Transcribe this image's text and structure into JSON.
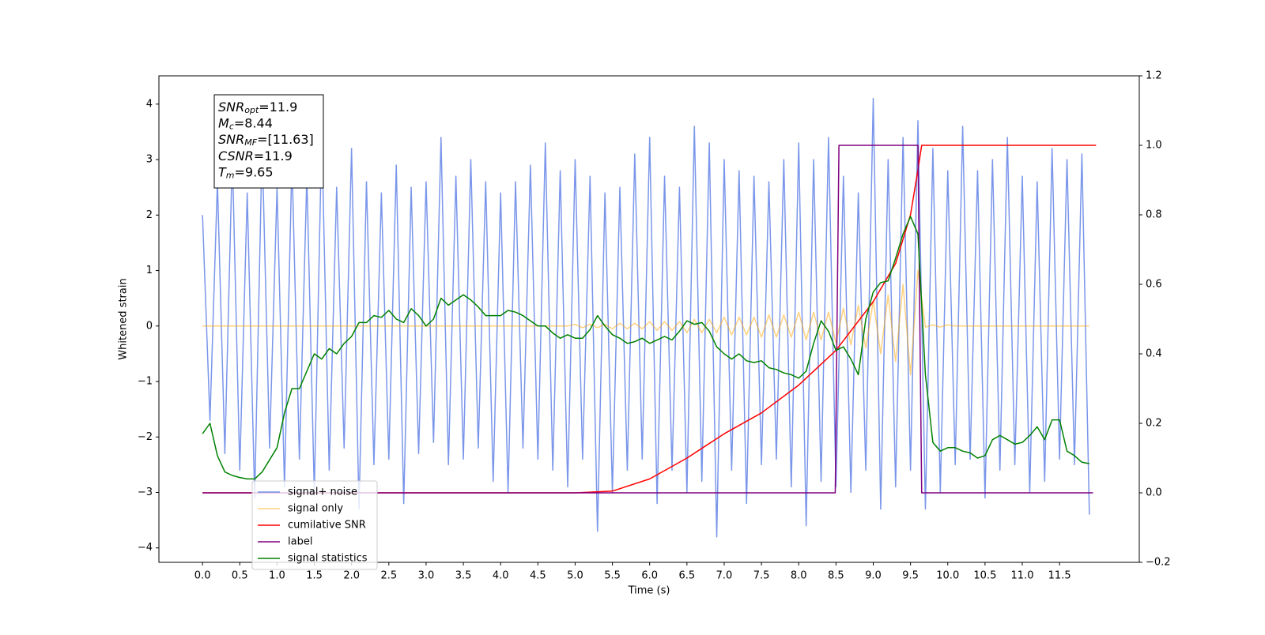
{
  "chart_data": {
    "type": "line",
    "x_label": "Time (s)",
    "y_label": "Whitened strain",
    "xlim": [
      -0.585,
      12.57
    ],
    "ylim": [
      -4.26,
      4.51
    ],
    "y2lim": [
      -0.2,
      1.2
    ],
    "xticks": [
      {
        "value": 0,
        "label": "0.0"
      },
      0.5,
      {
        "value": 1,
        "label": "1.0"
      },
      1.5,
      {
        "value": 2,
        "label": "2.0"
      },
      2.5,
      {
        "value": 3,
        "label": "3.0"
      },
      3.5,
      {
        "value": 4,
        "label": "4.0"
      },
      4.5,
      {
        "value": 5,
        "label": "5.0"
      },
      5.5,
      {
        "value": 6,
        "label": "6.0"
      },
      6.5,
      {
        "value": 7,
        "label": "7.0"
      },
      7.5,
      {
        "value": 8,
        "label": "8.0"
      },
      8.5,
      {
        "value": 9,
        "label": "9.0"
      },
      9.5,
      {
        "value": 10,
        "label": "10.0"
      },
      10.5,
      {
        "value": 11,
        "label": "11.0"
      },
      11.5
    ],
    "yticks": [
      {
        "value": -4,
        "label": "−4"
      },
      {
        "value": -3,
        "label": "−3"
      },
      {
        "value": -2,
        "label": "−2"
      },
      {
        "value": -1,
        "label": "−1"
      },
      0,
      1,
      2,
      3,
      4
    ],
    "y2ticks": [
      {
        "value": -0.2,
        "label": "−0.2"
      },
      {
        "value": 0,
        "label": "0.0"
      },
      0.2,
      0.4,
      0.6,
      0.8,
      {
        "value": 1,
        "label": "1.0"
      },
      1.2
    ],
    "grid": false,
    "legend": "lower left",
    "annotation": [
      {
        "symbol": "SNR",
        "subscript": "opt",
        "text": "=11.9"
      },
      {
        "symbol": "M",
        "subscript": "c",
        "text": "=8.44"
      },
      {
        "symbol": "SNR",
        "subscript": "MF",
        "text": "=[11.63]"
      },
      {
        "symbol": "CSNR",
        "text": "=11.9"
      },
      {
        "symbol": "T",
        "subscript": "m",
        "text": "=9.65"
      }
    ],
    "x": [
      0,
      0.1,
      0.2,
      0.3,
      0.4,
      0.5,
      0.6,
      0.7,
      0.8,
      0.9,
      1,
      1.1,
      1.2,
      1.3,
      1.4,
      1.5,
      1.6,
      1.7,
      1.8,
      1.9,
      2,
      2.1,
      2.2,
      2.3,
      2.4,
      2.5,
      2.6,
      2.7,
      2.8,
      2.9,
      3,
      3.1,
      3.2,
      3.3,
      3.4,
      3.5,
      3.6,
      3.7,
      3.8,
      3.9,
      4,
      4.1,
      4.2,
      4.3,
      4.4,
      4.5,
      4.6,
      4.7,
      4.8,
      4.9,
      5,
      5.1,
      5.2,
      5.3,
      5.4,
      5.5,
      5.6,
      5.7,
      5.8,
      5.9,
      6,
      6.1,
      6.2,
      6.3,
      6.4,
      6.5,
      6.6,
      6.7,
      6.8,
      6.9,
      7,
      7.1,
      7.2,
      7.3,
      7.4,
      7.5,
      7.6,
      7.7,
      7.8,
      7.9,
      8,
      8.1,
      8.2,
      8.3,
      8.4,
      8.5,
      8.6,
      8.7,
      8.8,
      8.9,
      9,
      9.1,
      9.2,
      9.3,
      9.4,
      9.5,
      9.6,
      9.7,
      9.8,
      9.9,
      10,
      10.1,
      10.2,
      10.3,
      10.4,
      10.5,
      10.6,
      10.7,
      10.8,
      10.9,
      11,
      11.1,
      11.2,
      11.3,
      11.4,
      11.5,
      11.6,
      11.7,
      11.8,
      11.9
    ],
    "series": [
      {
        "name": "signal+ noise",
        "color": "#4169e1",
        "alpha": 0.7,
        "axis": "y",
        "values": [
          2.0,
          -1.7,
          2.6,
          -2.3,
          3.1,
          -2.6,
          2.4,
          -3.1,
          3.3,
          -2.2,
          2.5,
          -2.9,
          3.0,
          -2.4,
          2.7,
          -3.0,
          3.5,
          -2.6,
          2.5,
          -2.2,
          3.2,
          -3.3,
          2.6,
          -2.5,
          2.4,
          -2.4,
          2.9,
          -3.2,
          2.5,
          -2.3,
          2.6,
          -2.1,
          3.4,
          -2.5,
          2.7,
          -2.4,
          3.0,
          -2.2,
          2.6,
          -2.8,
          2.4,
          -3.0,
          2.6,
          -2.2,
          2.9,
          -2.4,
          3.3,
          -2.6,
          2.8,
          -2.9,
          3.0,
          -2.4,
          2.7,
          -3.7,
          2.4,
          -3.0,
          2.5,
          -2.6,
          3.1,
          -2.4,
          3.4,
          -3.2,
          2.7,
          -2.6,
          2.5,
          -3.0,
          3.6,
          -2.8,
          3.3,
          -3.8,
          3.0,
          -2.6,
          2.8,
          -3.2,
          2.7,
          -2.5,
          2.6,
          -2.4,
          3.0,
          -2.9,
          3.3,
          -3.6,
          3.0,
          -2.8,
          3.4,
          -2.9,
          2.7,
          -3.0,
          2.4,
          -2.6,
          4.1,
          -3.3,
          3.0,
          -2.9,
          3.4,
          -2.6,
          3.7,
          -3.3,
          3.2,
          -3.0,
          2.8,
          -2.5,
          3.6,
          -2.4,
          2.8,
          -3.1,
          3.0,
          -2.6,
          3.4,
          -2.5,
          2.7,
          -3.0,
          2.6,
          -2.8,
          3.2,
          -2.4,
          3.0,
          -2.5,
          3.1,
          -3.4
        ]
      },
      {
        "name": "signal only",
        "color": "#ffa500",
        "alpha": 0.5,
        "axis": "y",
        "values": [
          0,
          0,
          0,
          0,
          0,
          0,
          0,
          0,
          0,
          0,
          0,
          0,
          0,
          0,
          0,
          0,
          0,
          0,
          0,
          0,
          0,
          0,
          0,
          0,
          0,
          0,
          0,
          0,
          0,
          0,
          0,
          0,
          0,
          0,
          0,
          0,
          0,
          0,
          0,
          0,
          0,
          0,
          0,
          0,
          0,
          0,
          0,
          0,
          0,
          0,
          0.03,
          -0.03,
          0.03,
          -0.03,
          0.03,
          -0.05,
          0.05,
          -0.05,
          0.05,
          -0.05,
          0.08,
          -0.08,
          0.08,
          -0.08,
          0.08,
          -0.12,
          0.12,
          -0.12,
          0.12,
          -0.12,
          0.16,
          -0.16,
          0.16,
          -0.16,
          0.16,
          -0.2,
          0.2,
          -0.2,
          0.2,
          -0.2,
          0.25,
          -0.25,
          0.25,
          -0.25,
          0.25,
          -0.3,
          0.32,
          -0.34,
          0.37,
          -0.4,
          0.45,
          -0.5,
          0.56,
          -0.64,
          0.75,
          -0.88,
          1.0,
          -0.02,
          0.02,
          -0.02,
          0.02,
          0,
          0,
          0,
          0,
          0,
          0,
          0,
          0,
          0,
          0,
          0,
          0,
          0,
          0,
          0,
          0,
          0,
          0,
          0
        ]
      },
      {
        "name": "cumilative SNR",
        "color": "#ff0000",
        "axis": "y2",
        "x": [
          0,
          5,
          5.5,
          6,
          6.5,
          7,
          7.5,
          8,
          8.5,
          9,
          9.3,
          9.5,
          9.6,
          9.65,
          11.99
        ],
        "values": [
          0,
          0,
          0.005,
          0.04,
          0.1,
          0.17,
          0.23,
          0.31,
          0.41,
          0.55,
          0.66,
          0.8,
          0.93,
          1.0,
          1.0
        ]
      },
      {
        "name": "label",
        "color": "#800080",
        "axis": "y2",
        "x": [
          0,
          8.49,
          8.54,
          9.6,
          9.65,
          11.95
        ],
        "values": [
          0,
          0,
          1,
          1,
          0,
          0
        ]
      },
      {
        "name": "signal statistics",
        "color": "#008000",
        "axis": "y2",
        "values": [
          0.17,
          0.2,
          0.107,
          0.06,
          0.05,
          0.044,
          0.04,
          0.04,
          0.06,
          0.095,
          0.13,
          0.23,
          0.3,
          0.3,
          0.35,
          0.4,
          0.385,
          0.415,
          0.4,
          0.43,
          0.45,
          0.49,
          0.49,
          0.51,
          0.505,
          0.525,
          0.5,
          0.49,
          0.53,
          0.51,
          0.48,
          0.5,
          0.56,
          0.54,
          0.555,
          0.57,
          0.555,
          0.535,
          0.51,
          0.51,
          0.51,
          0.525,
          0.52,
          0.51,
          0.495,
          0.48,
          0.48,
          0.46,
          0.445,
          0.455,
          0.445,
          0.445,
          0.47,
          0.51,
          0.48,
          0.455,
          0.445,
          0.43,
          0.435,
          0.445,
          0.43,
          0.44,
          0.45,
          0.44,
          0.465,
          0.495,
          0.485,
          0.49,
          0.465,
          0.42,
          0.4,
          0.385,
          0.4,
          0.38,
          0.375,
          0.38,
          0.36,
          0.355,
          0.345,
          0.34,
          0.33,
          0.35,
          0.43,
          0.495,
          0.465,
          0.41,
          0.42,
          0.385,
          0.34,
          0.5,
          0.578,
          0.605,
          0.61,
          0.675,
          0.745,
          0.795,
          0.745,
          0.34,
          0.145,
          0.12,
          0.13,
          0.13,
          0.12,
          0.115,
          0.1,
          0.107,
          0.153,
          0.165,
          0.153,
          0.14,
          0.145,
          0.165,
          0.19,
          0.153,
          0.21,
          0.21,
          0.12,
          0.107,
          0.088,
          0.084
        ]
      }
    ]
  }
}
